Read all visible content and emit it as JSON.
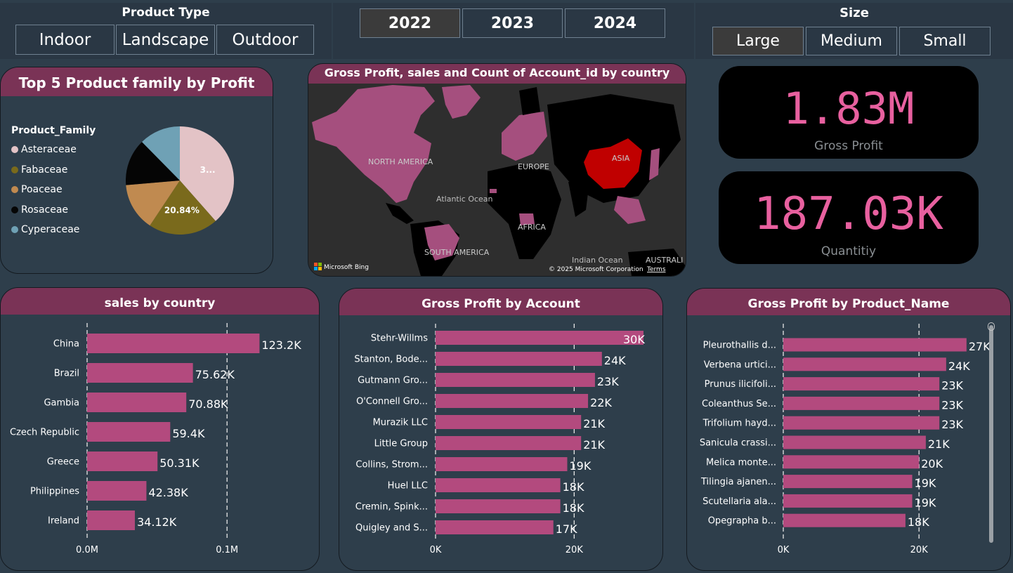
{
  "slicers": {
    "product_type": {
      "title": "Product Type",
      "options": [
        "Indoor",
        "Landscape",
        "Outdoor"
      ],
      "selected": null
    },
    "year": {
      "options": [
        "2022",
        "2023",
        "2024"
      ],
      "selected": "2022"
    },
    "size": {
      "title": "Size",
      "options": [
        "Large",
        "Medium",
        "Small"
      ],
      "selected": "Large"
    }
  },
  "pie": {
    "title": "Top 5 Product family by Profit",
    "legend_title": "Product_Family",
    "slices": [
      {
        "name": "Asteraceae",
        "value": 38.5,
        "label": "3...",
        "color": "#e3c3c6"
      },
      {
        "name": "Fabaceae",
        "value": 20.84,
        "label": "20.84%",
        "color": "#7a6a1c"
      },
      {
        "name": "Poaceae",
        "value": 14.3,
        "label": "",
        "color": "#c08a50"
      },
      {
        "name": "Rosaceae",
        "value": 14.0,
        "label": "",
        "color": "#050505"
      },
      {
        "name": "Cyperaceae",
        "value": 12.36,
        "label": "",
        "color": "#6fa1b5"
      }
    ]
  },
  "map": {
    "title": "Gross Profit, sales and Count of Account_id by country",
    "labels": {
      "na": "NORTH AMERICA",
      "eu": "EUROPE",
      "asia": "ASIA",
      "africa": "AFRICA",
      "sa": "SOUTH AMERICA",
      "atlantic": "Atlantic Ocean",
      "indian": "Indian Ocean",
      "aus": "AUSTRALI"
    },
    "bing": "Microsoft Bing",
    "copyright": "© 2025 Microsoft Corporation",
    "terms": "Terms"
  },
  "kpis": {
    "gross_profit": {
      "value": "1.83M",
      "label": "Gross Profit"
    },
    "quantity": {
      "value": "187.03K",
      "label": "Quantitiy"
    }
  },
  "chart_data": [
    {
      "type": "bar",
      "orientation": "horizontal",
      "title": "sales by country",
      "categories": [
        "China",
        "Brazil",
        "Gambia",
        "Czech Republic",
        "Greece",
        "Philippines",
        "Ireland"
      ],
      "values": [
        123200,
        75620,
        70880,
        59400,
        50310,
        42380,
        34120
      ],
      "data_labels": [
        "123.2K",
        "75.62K",
        "70.88K",
        "59.4K",
        "50.31K",
        "42.38K",
        "34.12K"
      ],
      "ticks": [
        {
          "value": 0,
          "label": "0.0M"
        },
        {
          "value": 100000,
          "label": "0.1M"
        }
      ],
      "xlim": [
        0,
        124000
      ],
      "grid": true,
      "color": "#b34a7e"
    },
    {
      "type": "bar",
      "orientation": "horizontal",
      "title": "Gross Profit by Account",
      "categories": [
        "Stehr-Willms",
        "Stanton, Bode...",
        "Gutmann Gro...",
        "O'Connell Gro...",
        "Murazik LLC",
        "Little Group",
        "Collins, Strom...",
        "Huel LLC",
        "Cremin, Spink...",
        "Quigley and S..."
      ],
      "values": [
        30000,
        24000,
        23000,
        22000,
        21000,
        21000,
        19000,
        18000,
        18000,
        17000
      ],
      "data_labels": [
        "30K",
        "24K",
        "23K",
        "22K",
        "21K",
        "21K",
        "19K",
        "18K",
        "18K",
        "17K"
      ],
      "ticks": [
        {
          "value": 0,
          "label": "0K"
        },
        {
          "value": 20000,
          "label": "20K"
        }
      ],
      "xlim": [
        0,
        30000
      ],
      "grid": true,
      "color": "#b34a7e"
    },
    {
      "type": "bar",
      "orientation": "horizontal",
      "title": "Gross Profit by Product_Name",
      "categories": [
        "Pleurothallis d...",
        "Verbena urtici...",
        "Prunus ilicifoli...",
        "Coleanthus Se...",
        "Trifolium hayd...",
        "Sanicula crassi...",
        "Melica monte...",
        "Tilingia ajanen...",
        "Scutellaria ala...",
        "Opegrapha b..."
      ],
      "values": [
        27000,
        24000,
        23000,
        23000,
        23000,
        21000,
        20000,
        19000,
        19000,
        18000
      ],
      "data_labels": [
        "27K",
        "24K",
        "23K",
        "23K",
        "23K",
        "21K",
        "20K",
        "19K",
        "19K",
        "18K"
      ],
      "ticks": [
        {
          "value": 0,
          "label": "0K"
        },
        {
          "value": 20000,
          "label": "20K"
        }
      ],
      "xlim": [
        0,
        26500
      ],
      "grid": true,
      "color": "#b34a7e"
    }
  ]
}
